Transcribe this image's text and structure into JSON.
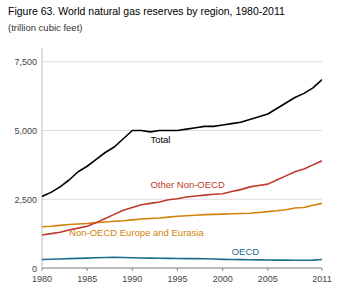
{
  "chart_data": {
    "type": "line",
    "title": "Figure 63. World natural gas reserves by region, 1980-2011",
    "subtitle": "(trillion cubic feet)",
    "x": [
      1980,
      1981,
      1982,
      1983,
      1984,
      1985,
      1986,
      1987,
      1988,
      1989,
      1990,
      1991,
      1992,
      1993,
      1994,
      1995,
      1996,
      1997,
      1998,
      1999,
      2000,
      2001,
      2002,
      2003,
      2004,
      2005,
      2006,
      2007,
      2008,
      2009,
      2010,
      2011
    ],
    "series": [
      {
        "name": "Total",
        "color": "#000000",
        "values": [
          2600,
          2750,
          2950,
          3200,
          3500,
          3700,
          3950,
          4200,
          4400,
          4700,
          5000,
          5000,
          4950,
          5000,
          5000,
          5000,
          5050,
          5100,
          5150,
          5150,
          5200,
          5250,
          5300,
          5400,
          5500,
          5600,
          5800,
          6000,
          6200,
          6350,
          6550,
          6850
        ]
      },
      {
        "name": "Other Non-OECD",
        "color": "#c0392b",
        "values": [
          1200,
          1250,
          1300,
          1380,
          1450,
          1520,
          1650,
          1800,
          1950,
          2100,
          2200,
          2300,
          2350,
          2400,
          2480,
          2520,
          2580,
          2620,
          2650,
          2680,
          2700,
          2780,
          2850,
          2950,
          3000,
          3050,
          3200,
          3350,
          3500,
          3600,
          3750,
          3900
        ]
      },
      {
        "name": "Non-OECD Europe and Eurasia",
        "color": "#d4820a",
        "values": [
          1500,
          1520,
          1550,
          1580,
          1600,
          1620,
          1650,
          1670,
          1700,
          1720,
          1750,
          1780,
          1800,
          1820,
          1850,
          1880,
          1900,
          1920,
          1940,
          1950,
          1960,
          1970,
          1980,
          1990,
          2020,
          2050,
          2080,
          2120,
          2180,
          2200,
          2280,
          2350
        ]
      },
      {
        "name": "OECD",
        "color": "#1a6e8e",
        "values": [
          310,
          320,
          330,
          340,
          350,
          360,
          370,
          380,
          390,
          380,
          370,
          365,
          360,
          355,
          350,
          345,
          340,
          340,
          335,
          325,
          315,
          310,
          305,
          300,
          295,
          290,
          285,
          285,
          280,
          280,
          285,
          310
        ]
      }
    ],
    "xlim": [
      1980,
      2011
    ],
    "ylim": [
      0,
      8000
    ],
    "xticks": [
      1980,
      1985,
      1990,
      1995,
      2000,
      2005,
      2011
    ],
    "yticks": [
      0,
      {
        "value": 2500,
        "label": "2,500"
      },
      {
        "value": 5000,
        "label": "5,000"
      },
      {
        "value": 7500,
        "label": "7,500"
      }
    ],
    "grid": true
  }
}
